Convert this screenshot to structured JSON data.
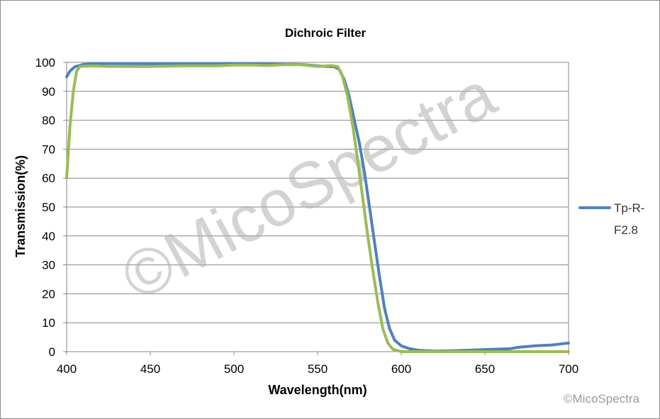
{
  "chart_data": {
    "type": "line",
    "title": "Dichroic Filter",
    "xlabel": "Wavelength(nm)",
    "ylabel": "Transmission(%)",
    "xlim": [
      400,
      700
    ],
    "ylim": [
      0,
      100
    ],
    "xticks": [
      "400",
      "450",
      "500",
      "550",
      "600",
      "650",
      "700"
    ],
    "yticks": [
      "0",
      "10",
      "20",
      "30",
      "40",
      "50",
      "60",
      "70",
      "80",
      "90",
      "100"
    ],
    "grid": "horizontal",
    "legend_position": "right",
    "series": [
      {
        "name": "Tp-R-F2.8",
        "color": "#4f81bd",
        "points": [
          [
            400,
            95
          ],
          [
            402,
            97
          ],
          [
            405,
            98.5
          ],
          [
            410,
            99.3
          ],
          [
            420,
            99.6
          ],
          [
            450,
            99.5
          ],
          [
            480,
            99.5
          ],
          [
            500,
            99.6
          ],
          [
            520,
            99.4
          ],
          [
            540,
            99.3
          ],
          [
            550,
            98.8
          ],
          [
            555,
            98.6
          ],
          [
            560,
            98.5
          ],
          [
            563,
            97.5
          ],
          [
            566,
            94
          ],
          [
            569,
            88
          ],
          [
            572,
            80
          ],
          [
            575,
            72
          ],
          [
            578,
            62
          ],
          [
            581,
            50
          ],
          [
            584,
            38
          ],
          [
            587,
            26
          ],
          [
            590,
            15
          ],
          [
            593,
            8
          ],
          [
            596,
            4
          ],
          [
            600,
            2
          ],
          [
            605,
            1
          ],
          [
            610,
            0.5
          ],
          [
            620,
            0.2
          ],
          [
            630,
            0.3
          ],
          [
            640,
            0.5
          ],
          [
            650,
            0.7
          ],
          [
            660,
            0.9
          ],
          [
            665,
            1.0
          ],
          [
            670,
            1.5
          ],
          [
            680,
            2.0
          ],
          [
            690,
            2.3
          ],
          [
            700,
            3.0
          ]
        ]
      },
      {
        "name": "",
        "color": "#9bbb59",
        "points": [
          [
            400,
            60
          ],
          [
            402,
            78
          ],
          [
            404,
            90
          ],
          [
            406,
            97
          ],
          [
            408,
            98.6
          ],
          [
            415,
            98.8
          ],
          [
            425,
            98.6
          ],
          [
            450,
            98.6
          ],
          [
            470,
            98.8
          ],
          [
            490,
            98.8
          ],
          [
            500,
            99.1
          ],
          [
            510,
            99.1
          ],
          [
            520,
            98.9
          ],
          [
            530,
            99.2
          ],
          [
            540,
            99.2
          ],
          [
            550,
            98.6
          ],
          [
            558,
            98.9
          ],
          [
            562,
            98.6
          ],
          [
            565,
            95
          ],
          [
            568,
            88
          ],
          [
            571,
            78
          ],
          [
            574,
            66
          ],
          [
            577,
            53
          ],
          [
            580,
            40
          ],
          [
            583,
            28
          ],
          [
            586,
            17
          ],
          [
            589,
            8
          ],
          [
            592,
            3
          ],
          [
            595,
            0.8
          ],
          [
            600,
            0
          ],
          [
            700,
            0
          ]
        ]
      }
    ]
  },
  "legend": {
    "label": "Tp-R-F2.8",
    "color": "#4f81bd"
  },
  "watermark": {
    "main": "©MicoSpectra",
    "corner": "©MicoSpectra"
  }
}
